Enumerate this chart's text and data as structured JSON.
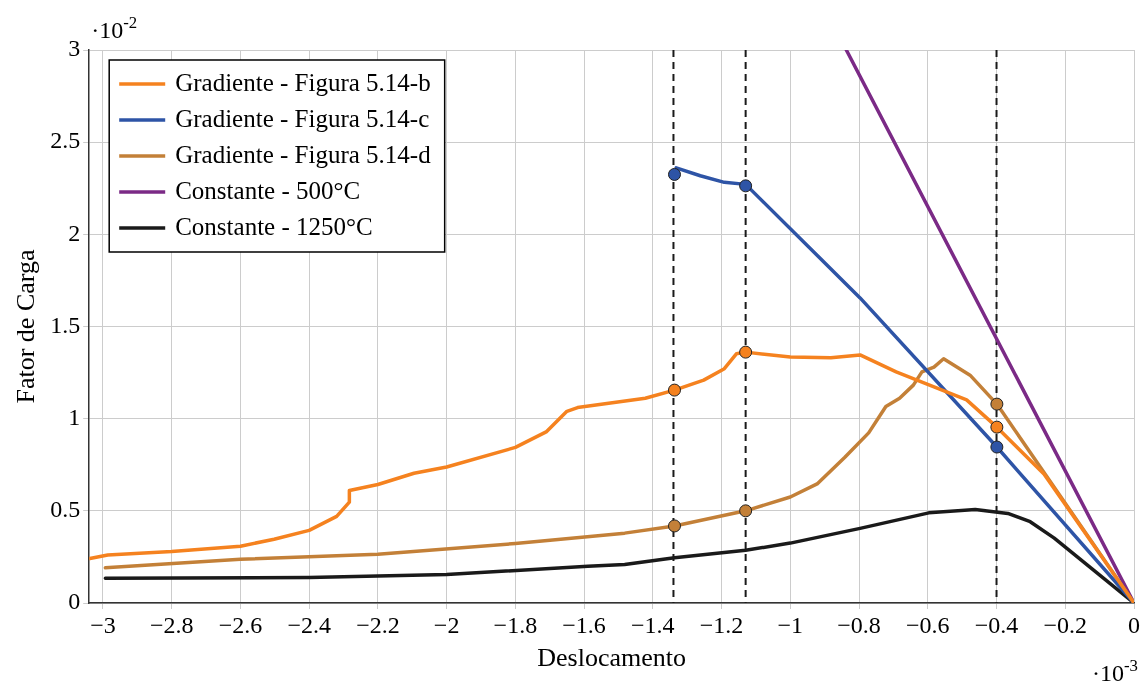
{
  "chart_data": {
    "type": "line",
    "xlabel": "Deslocamento",
    "ylabel": "Fator de Carga",
    "xlim": [
      -3.04,
      0
    ],
    "xticks": [
      -3,
      -2.8,
      -2.6,
      -2.4,
      -2.2,
      -2,
      -1.8,
      -1.6,
      -1.4,
      -1.2,
      -1,
      -0.8,
      -0.6,
      -0.4,
      -0.2,
      0
    ],
    "ylim": [
      0,
      3
    ],
    "yticks": [
      0,
      0.5,
      1,
      1.5,
      2,
      2.5,
      3
    ],
    "grid": true,
    "legend": "top left",
    "marker": "none",
    "line_style": "solid",
    "annotations": [
      "·10$^{-2}$",
      "·10$^{-3}$"
    ],
    "ref_lines": [
      {
        "axis": "x",
        "value": -1.34,
        "color": "#1a1a1a",
        "line_style": "dashed"
      },
      {
        "axis": "x",
        "value": -1.13,
        "color": "#1a1a1a",
        "line_style": "dashed"
      },
      {
        "axis": "x",
        "value": -0.4,
        "color": "#1a1a1a",
        "line_style": "dashed"
      }
    ],
    "series": [
      {
        "name": "Gradiente - Figura 5.14-b",
        "color": "#f5821f",
        "x": [
          -3.038,
          -2.986,
          -2.8,
          -2.6,
          -2.502,
          -2.4,
          -2.32,
          -2.283,
          -2.283,
          -2.2,
          -2.095,
          -2.0,
          -1.8,
          -1.709,
          -1.65,
          -1.619,
          -1.422,
          -1.337,
          -1.252,
          -1.192,
          -1.157,
          -1.13,
          -1.0,
          -0.882,
          -0.797,
          -0.692,
          -0.582,
          -0.487,
          -0.399,
          -0.262,
          0
        ],
        "values": [
          0.241,
          0.26,
          0.279,
          0.308,
          0.346,
          0.394,
          0.47,
          0.547,
          0.61,
          0.643,
          0.704,
          0.738,
          0.844,
          0.93,
          1.04,
          1.06,
          1.111,
          1.155,
          1.209,
          1.271,
          1.352,
          1.361,
          1.334,
          1.33,
          1.346,
          1.254,
          1.173,
          1.102,
          0.954,
          0.7,
          0
        ]
      },
      {
        "name": "Gradiente - Figura 5.14-c",
        "color": "#2e54a6",
        "x": [
          -1.332,
          -1.262,
          -1.192,
          -1.13,
          -0.797,
          -0.399,
          0
        ],
        "values": [
          2.361,
          2.318,
          2.282,
          2.271,
          1.655,
          0.846,
          0
        ]
      },
      {
        "name": "Gradiente - Figura 5.14-d",
        "color": "#c38038",
        "x": [
          -2.993,
          -2.6,
          -2.2,
          -1.8,
          -1.482,
          -1.337,
          -1.13,
          -1.0,
          -0.922,
          -0.842,
          -0.772,
          -0.722,
          -0.682,
          -0.642,
          -0.617,
          -0.582,
          -0.554,
          -0.477,
          -0.399,
          0
        ],
        "values": [
          0.191,
          0.237,
          0.264,
          0.323,
          0.379,
          0.418,
          0.5,
          0.575,
          0.646,
          0.789,
          0.923,
          1.066,
          1.111,
          1.182,
          1.254,
          1.28,
          1.325,
          1.236,
          1.079,
          0
        ]
      },
      {
        "name": "Constante - 500°C",
        "color": "#7b2a86",
        "x": [
          -0.837,
          0
        ],
        "values": [
          3,
          0
        ]
      },
      {
        "name": "Constante - 1250°C",
        "color": "#1a1a1a",
        "x": [
          -2.993,
          -2.4,
          -2.0,
          -1.589,
          -1.482,
          -1.337,
          -1.13,
          -1.0,
          -0.797,
          -0.597,
          -0.462,
          -0.367,
          -0.302,
          -0.232,
          0
        ],
        "values": [
          0.134,
          0.138,
          0.155,
          0.199,
          0.209,
          0.245,
          0.286,
          0.325,
          0.405,
          0.489,
          0.507,
          0.486,
          0.441,
          0.352,
          0
        ]
      },
      {
        "type": "scatter",
        "marker": "circle",
        "color": "#f5821f",
        "x": [
          -1.337,
          -1.13,
          -0.399
        ],
        "values": [
          1.155,
          1.361,
          0.954
        ]
      },
      {
        "type": "scatter",
        "marker": "circle",
        "color": "#2e54a6",
        "x": [
          -1.337,
          -1.13,
          -0.399
        ],
        "values": [
          2.325,
          2.263,
          0.846
        ]
      },
      {
        "type": "scatter",
        "marker": "circle",
        "color": "#c38038",
        "x": [
          -1.337,
          -1.13,
          -0.399
        ],
        "values": [
          0.418,
          0.5,
          1.079
        ]
      }
    ]
  }
}
